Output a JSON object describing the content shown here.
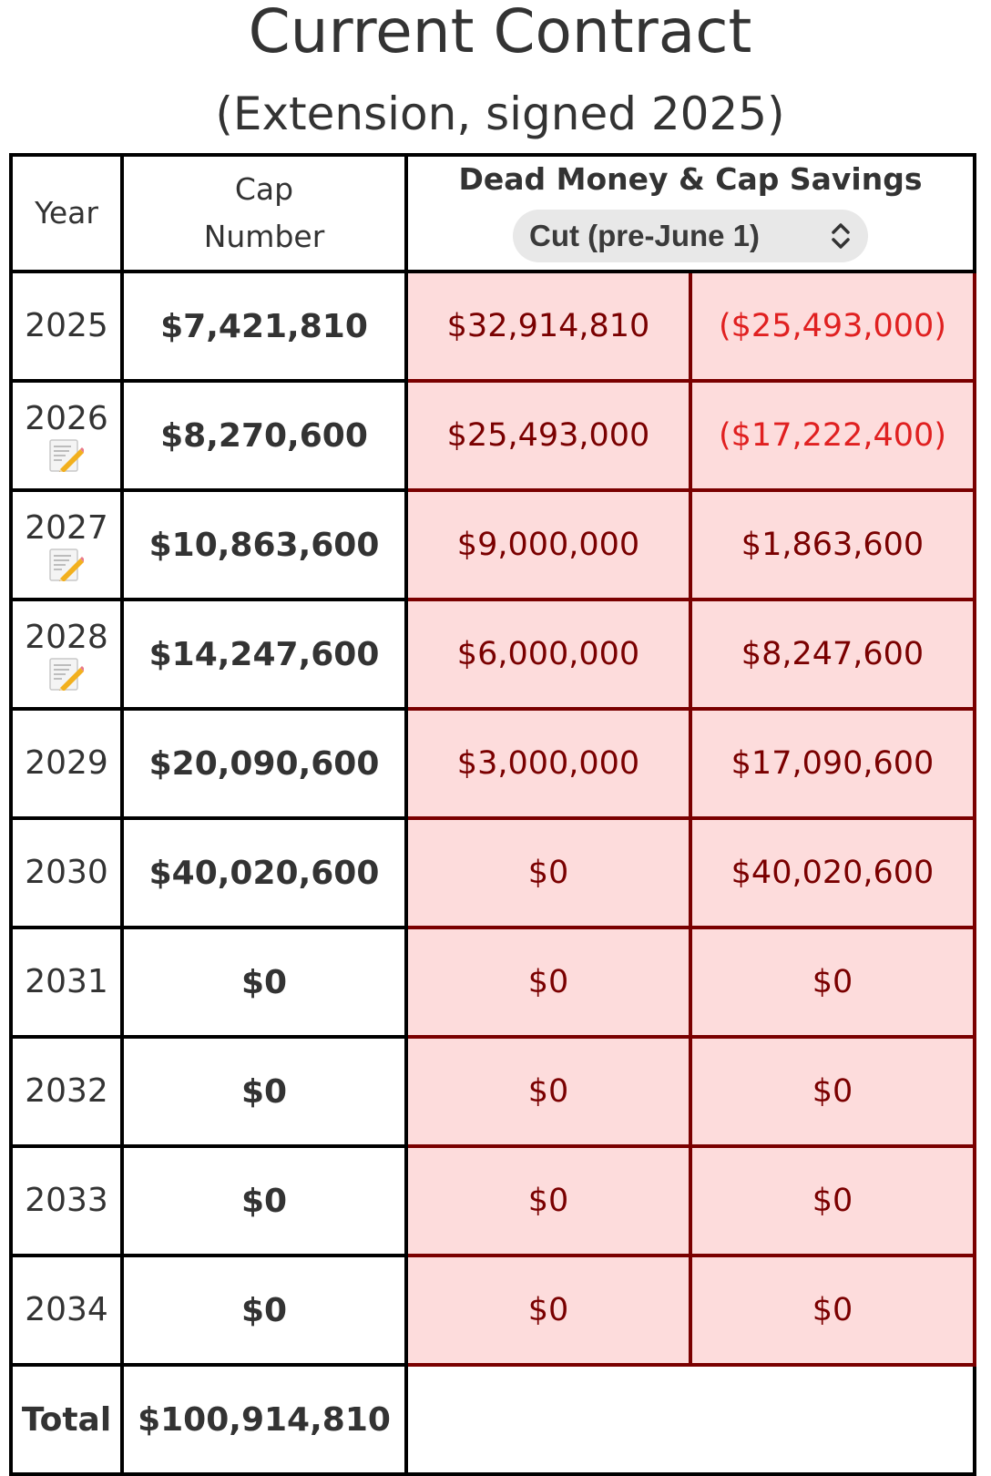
{
  "header": {
    "title": "Current Contract",
    "subtitle": "(Extension, signed 2025)"
  },
  "table": {
    "headers": {
      "year": "Year",
      "cap_line1": "Cap",
      "cap_line2": "Number",
      "dead_money": "Dead Money & Cap Savings"
    },
    "scenario_select": {
      "selected": "Cut (pre-June 1)"
    },
    "rows": [
      {
        "year": "2025",
        "note_icon": false,
        "cap": "$7,421,810",
        "dead": "$32,914,810",
        "savings": "($25,493,000)",
        "savings_negative": true
      },
      {
        "year": "2026",
        "note_icon": true,
        "cap": "$8,270,600",
        "dead": "$25,493,000",
        "savings": "($17,222,400)",
        "savings_negative": true
      },
      {
        "year": "2027",
        "note_icon": true,
        "cap": "$10,863,600",
        "dead": "$9,000,000",
        "savings": "$1,863,600",
        "savings_negative": false
      },
      {
        "year": "2028",
        "note_icon": true,
        "cap": "$14,247,600",
        "dead": "$6,000,000",
        "savings": "$8,247,600",
        "savings_negative": false
      },
      {
        "year": "2029",
        "note_icon": false,
        "cap": "$20,090,600",
        "dead": "$3,000,000",
        "savings": "$17,090,600",
        "savings_negative": false
      },
      {
        "year": "2030",
        "note_icon": false,
        "cap": "$40,020,600",
        "dead": "$0",
        "savings": "$40,020,600",
        "savings_negative": false
      },
      {
        "year": "2031",
        "note_icon": false,
        "cap": "$0",
        "dead": "$0",
        "savings": "$0",
        "savings_negative": false
      },
      {
        "year": "2032",
        "note_icon": false,
        "cap": "$0",
        "dead": "$0",
        "savings": "$0",
        "savings_negative": false
      },
      {
        "year": "2033",
        "note_icon": false,
        "cap": "$0",
        "dead": "$0",
        "savings": "$0",
        "savings_negative": false
      },
      {
        "year": "2034",
        "note_icon": false,
        "cap": "$0",
        "dead": "$0",
        "savings": "$0",
        "savings_negative": false
      }
    ],
    "total": {
      "label": "Total",
      "cap": "$100,914,810"
    }
  },
  "colors": {
    "dead_bg": "#fddcdc",
    "dead_border": "#7a0000",
    "dead_text": "#7a0000",
    "negative_text": "#e02020"
  },
  "icons": {
    "note": "memo-pencil-icon",
    "select": "chevron-up-down-icon"
  }
}
